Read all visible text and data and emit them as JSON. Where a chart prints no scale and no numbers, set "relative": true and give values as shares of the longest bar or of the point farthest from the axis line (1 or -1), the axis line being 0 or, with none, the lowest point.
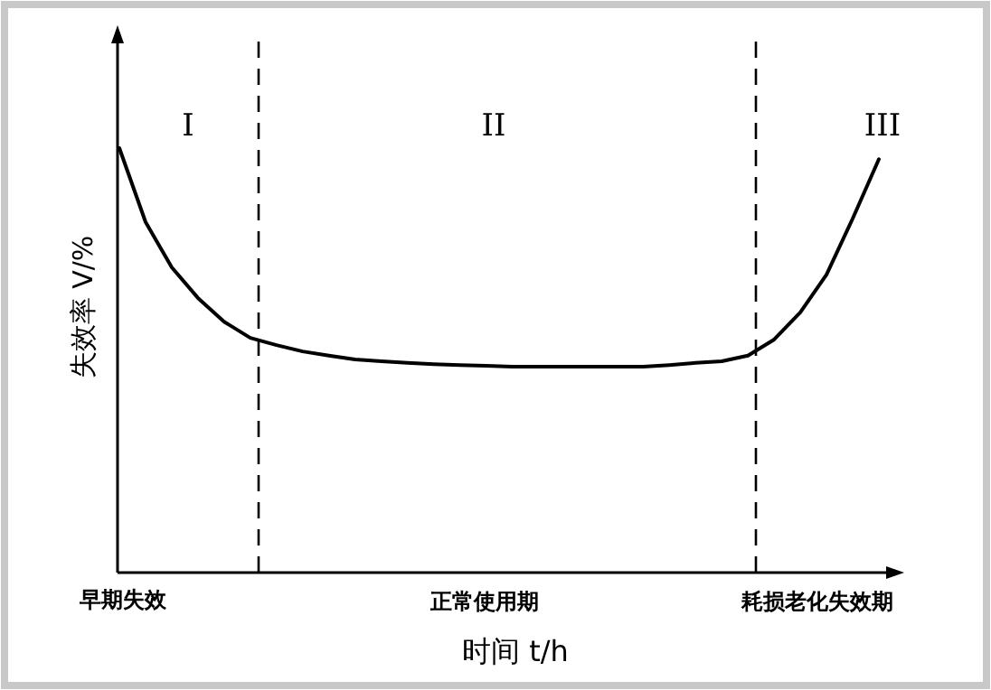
{
  "chart_data": {
    "type": "line",
    "relative": true,
    "xlabel": "时间 t/h",
    "ylabel": "失效率 V/%",
    "color": "#000000",
    "categories": [
      null,
      null,
      null,
      null,
      null,
      null,
      null,
      null,
      null,
      null,
      null,
      null,
      null,
      null,
      null,
      null,
      null,
      null,
      null,
      null,
      null,
      null,
      null,
      null,
      null,
      null,
      null,
      null,
      null,
      null
    ],
    "values": [
      1,
      0.826,
      0.719,
      0.647,
      0.591,
      0.553,
      0.536,
      0.521,
      0.511,
      0.502,
      0.498,
      0.494,
      0.491,
      0.489,
      0.487,
      0.485,
      0.485,
      0.485,
      0.485,
      0.485,
      0.485,
      0.489,
      0.494,
      0.498,
      0.511,
      0.549,
      0.613,
      0.702,
      0.834,
      0.974
    ],
    "annotations": [
      "I",
      "II",
      "III",
      "早期失效",
      "正常使用期",
      "耗损老化失效期"
    ]
  }
}
